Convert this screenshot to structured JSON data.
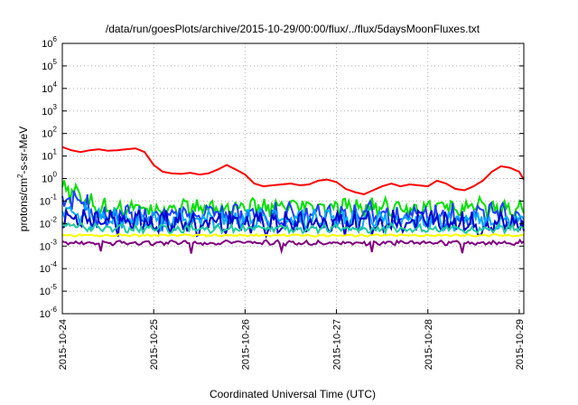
{
  "chart_data": {
    "type": "line",
    "title": "/data/run/goesPlots/archive/2015-10-29/00:00/flux/../flux/5daysMoonFluxes.txt",
    "xlabel": "Coordinated Universal Time (UTC)",
    "ylabel_parts": [
      "protons/cm",
      "2",
      "-s-sr-MeV"
    ],
    "x_ticks": [
      "2015-10-24",
      "2015-10-25",
      "2015-10-26",
      "2015-10-27",
      "2015-10-28",
      "2015-10-29"
    ],
    "x_range_days": [
      0,
      5.05
    ],
    "y_scale": "log",
    "y_exp_range": [
      -6,
      6
    ],
    "y_tick_base": "10",
    "y_tick_exponents": [
      "-6",
      "-5",
      "-4",
      "-3",
      "-2",
      "-1",
      "0",
      "1",
      "2",
      "3",
      "4",
      "5",
      "6"
    ],
    "grid": true,
    "legend": "none",
    "series": [
      {
        "color": "#ff0000",
        "x": [
          0,
          0.1,
          0.2,
          0.3,
          0.4,
          0.5,
          0.6,
          0.7,
          0.8,
          0.9,
          1.0,
          1.1,
          1.2,
          1.3,
          1.4,
          1.5,
          1.6,
          1.7,
          1.8,
          1.9,
          2.0,
          2.1,
          2.2,
          2.3,
          2.4,
          2.5,
          2.6,
          2.7,
          2.8,
          2.9,
          3.0,
          3.05,
          3.1,
          3.2,
          3.3,
          3.4,
          3.5,
          3.6,
          3.7,
          3.8,
          3.9,
          4.0,
          4.1,
          4.2,
          4.3,
          4.4,
          4.5,
          4.6,
          4.7,
          4.8,
          4.9,
          5.0,
          5.05
        ],
        "y": [
          25,
          18,
          15,
          18,
          20,
          17,
          18,
          20,
          22,
          15,
          4,
          2,
          1.7,
          1.6,
          1.8,
          1.5,
          1.7,
          2.5,
          4,
          2.5,
          1.5,
          0.6,
          0.45,
          0.5,
          0.55,
          0.6,
          0.5,
          0.55,
          0.8,
          0.9,
          0.7,
          0.5,
          0.35,
          0.25,
          0.2,
          0.3,
          0.45,
          0.6,
          0.45,
          0.55,
          0.5,
          0.45,
          0.8,
          0.6,
          0.35,
          0.3,
          0.45,
          0.8,
          2,
          3.5,
          3,
          2,
          0.9
        ]
      },
      {
        "color": "#00e000",
        "level": 0.05,
        "start": 0.3,
        "amp": 0.32
      },
      {
        "color": "#1f3fff",
        "level": 0.023,
        "start": 0.13,
        "amp": 0.45
      },
      {
        "color": "#00aaff",
        "level": 0.014,
        "start": 0.05,
        "amp": 0.35
      },
      {
        "color": "#0000cc",
        "level": 0.011,
        "start": 0.02,
        "amp": 0.42
      },
      {
        "color": "#20c8a0",
        "level": 0.006,
        "start": 0.01,
        "amp": 0.15
      },
      {
        "color": "#ffff00",
        "level": 0.003,
        "start": 0.003,
        "amp": 0.04
      },
      {
        "color": "#800080",
        "level": 0.0014,
        "start": 0.0014,
        "amp": 0.08
      }
    ]
  }
}
